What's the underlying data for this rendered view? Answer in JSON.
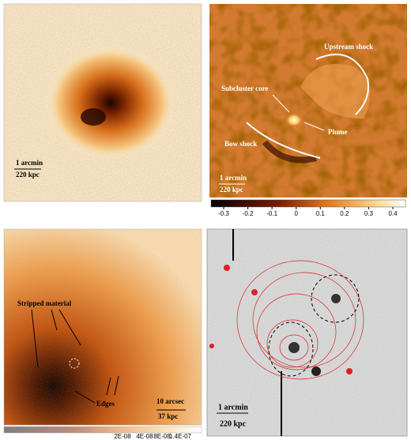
{
  "panels": [
    {
      "scale": [
        "1 arcmin",
        "220 kpc"
      ]
    },
    {
      "annotations": [
        "Upstream shock",
        "Subcluster core",
        "Plume",
        "Bow shock"
      ],
      "scale": [
        "1 arcmin",
        "220 kpc"
      ],
      "colorbar_ticks": [
        -0.3,
        -0.2,
        -0.1,
        0,
        0.1,
        0.2,
        0.3,
        0.4
      ]
    },
    {
      "annotations": [
        "Stripped material",
        "Edges"
      ],
      "scale": [
        "10 arcsec",
        "37 kpc"
      ],
      "colorbar_ticks": [
        "2E-08",
        "4E-08",
        "8E-08",
        "1.4E-07"
      ]
    },
    {
      "scale": [
        "1 arcmin",
        "220 kpc"
      ]
    }
  ]
}
